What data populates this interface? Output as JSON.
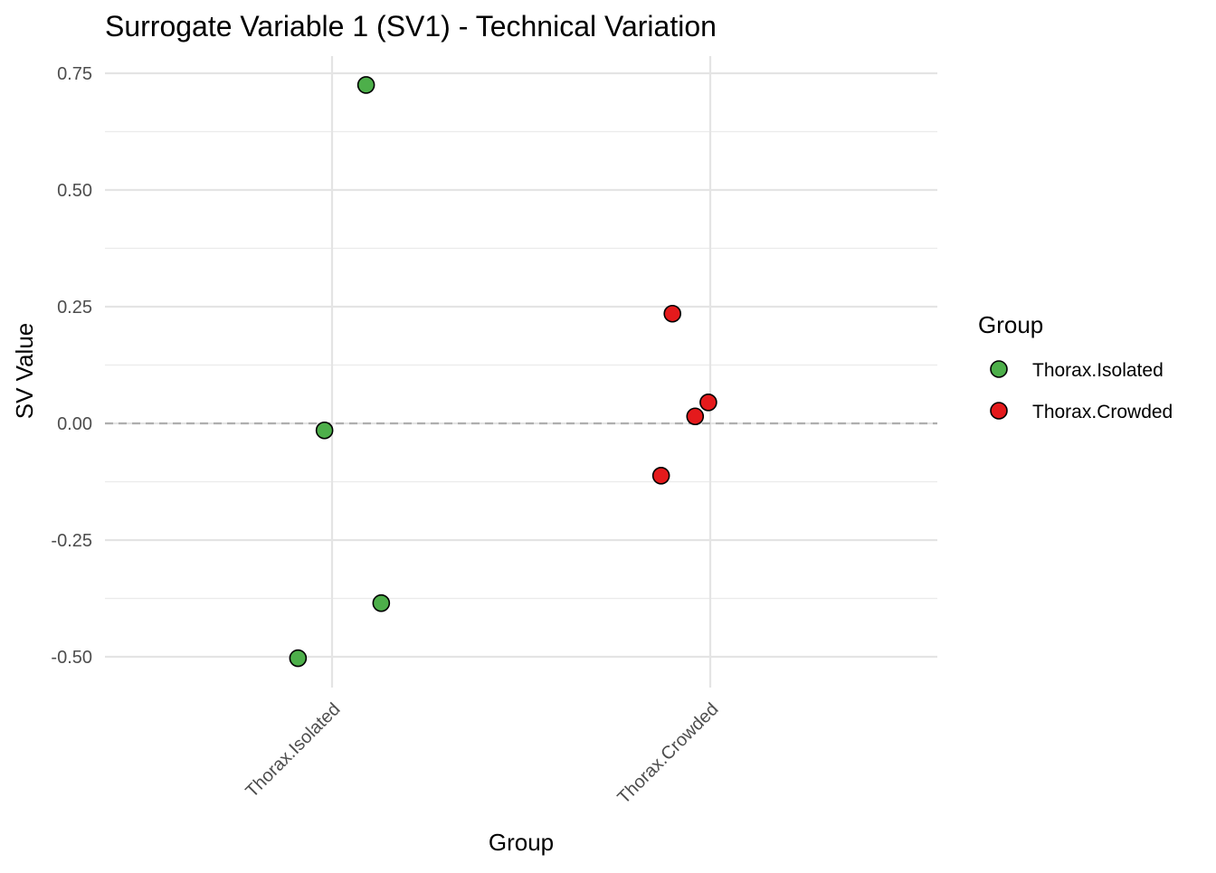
{
  "chart_data": {
    "type": "scatter",
    "title": "Surrogate Variable 1 (SV1) - Technical Variation",
    "xlabel": "Group",
    "ylabel": "SV Value",
    "categories": [
      "Thorax.Isolated",
      "Thorax.Crowded"
    ],
    "ylim": [
      -0.56,
      0.79
    ],
    "yticks": [
      -0.5,
      -0.25,
      0.0,
      0.25,
      0.5,
      0.75
    ],
    "ytick_labels": [
      "-0.50",
      "-0.25",
      "0.00",
      "0.25",
      "0.50",
      "0.75"
    ],
    "reference_line": {
      "y": 0,
      "style": "dashed"
    },
    "grid": true,
    "legend": {
      "title": "Group",
      "position": "right",
      "entries": [
        "Thorax.Isolated",
        "Thorax.Crowded"
      ]
    },
    "series": [
      {
        "name": "Thorax.Isolated",
        "color": "#4DAF4A",
        "points": [
          {
            "category": "Thorax.Isolated",
            "jitter": 0.09,
            "y": 0.725
          },
          {
            "category": "Thorax.Isolated",
            "jitter": -0.02,
            "y": -0.015
          },
          {
            "category": "Thorax.Isolated",
            "jitter": 0.13,
            "y": -0.385
          },
          {
            "category": "Thorax.Isolated",
            "jitter": -0.09,
            "y": -0.503
          }
        ]
      },
      {
        "name": "Thorax.Crowded",
        "color": "#E41A1C",
        "points": [
          {
            "category": "Thorax.Crowded",
            "jitter": -0.1,
            "y": 0.235
          },
          {
            "category": "Thorax.Crowded",
            "jitter": -0.005,
            "y": 0.045
          },
          {
            "category": "Thorax.Crowded",
            "jitter": -0.04,
            "y": 0.015
          },
          {
            "category": "Thorax.Crowded",
            "jitter": -0.13,
            "y": -0.112
          }
        ]
      }
    ]
  }
}
